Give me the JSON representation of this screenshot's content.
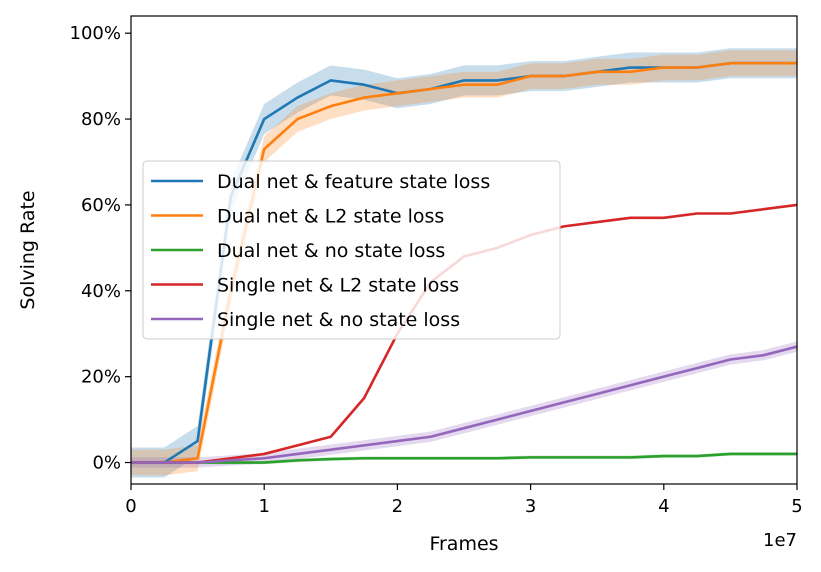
{
  "chart_data": {
    "type": "line",
    "xlabel": "Frames",
    "ylabel": "Solving Rate",
    "x_multiplier_label": "1e7",
    "xlim": [
      0,
      5
    ],
    "ylim": [
      -0.05,
      1.04
    ],
    "xticks": [
      0,
      1,
      2,
      3,
      4,
      5
    ],
    "xtick_labels": [
      "0",
      "1",
      "2",
      "3",
      "4",
      "5"
    ],
    "yticks": [
      0,
      0.2,
      0.4,
      0.6,
      0.8,
      1.0
    ],
    "ytick_labels": [
      "0%",
      "20%",
      "40%",
      "60%",
      "80%",
      "100%"
    ],
    "grid": false,
    "legend_position": "center-left",
    "x": [
      0,
      0.25,
      0.5,
      0.75,
      1.0,
      1.25,
      1.5,
      1.75,
      2.0,
      2.25,
      2.5,
      2.75,
      3.0,
      3.25,
      3.5,
      3.75,
      4.0,
      4.25,
      4.5,
      4.75,
      5.0
    ],
    "series": [
      {
        "name": "Dual net & feature state loss",
        "color": "#1f77b4",
        "values": [
          0.0,
          0.0,
          0.05,
          0.62,
          0.8,
          0.85,
          0.89,
          0.88,
          0.86,
          0.87,
          0.89,
          0.89,
          0.9,
          0.9,
          0.91,
          0.92,
          0.92,
          0.92,
          0.93,
          0.93,
          0.93
        ],
        "band": 0.035
      },
      {
        "name": "Dual net & L2 state loss",
        "color": "#ff7f0e",
        "values": [
          0.0,
          0.0,
          0.01,
          0.4,
          0.73,
          0.8,
          0.83,
          0.85,
          0.86,
          0.87,
          0.88,
          0.88,
          0.9,
          0.9,
          0.91,
          0.91,
          0.92,
          0.92,
          0.93,
          0.93,
          0.93
        ],
        "band": 0.03
      },
      {
        "name": "Dual net & no state loss",
        "color": "#2ca02c",
        "values": [
          0.0,
          0.0,
          0.0,
          0.0,
          0.0,
          0.005,
          0.008,
          0.01,
          0.01,
          0.01,
          0.01,
          0.01,
          0.012,
          0.012,
          0.012,
          0.012,
          0.015,
          0.015,
          0.02,
          0.02,
          0.02
        ],
        "band": 0.004
      },
      {
        "name": "Single net & L2 state loss",
        "color": "#d62728",
        "values": [
          0.0,
          0.0,
          0.0,
          0.01,
          0.02,
          0.04,
          0.06,
          0.15,
          0.3,
          0.42,
          0.48,
          0.5,
          0.53,
          0.55,
          0.56,
          0.57,
          0.57,
          0.58,
          0.58,
          0.59,
          0.6
        ],
        "band": 0.0
      },
      {
        "name": "Single net & no state loss",
        "color": "#9467bd",
        "values": [
          0.0,
          0.0,
          0.0,
          0.005,
          0.01,
          0.02,
          0.03,
          0.04,
          0.05,
          0.06,
          0.08,
          0.1,
          0.12,
          0.14,
          0.16,
          0.18,
          0.2,
          0.22,
          0.24,
          0.25,
          0.27
        ],
        "band": 0.012
      }
    ]
  }
}
